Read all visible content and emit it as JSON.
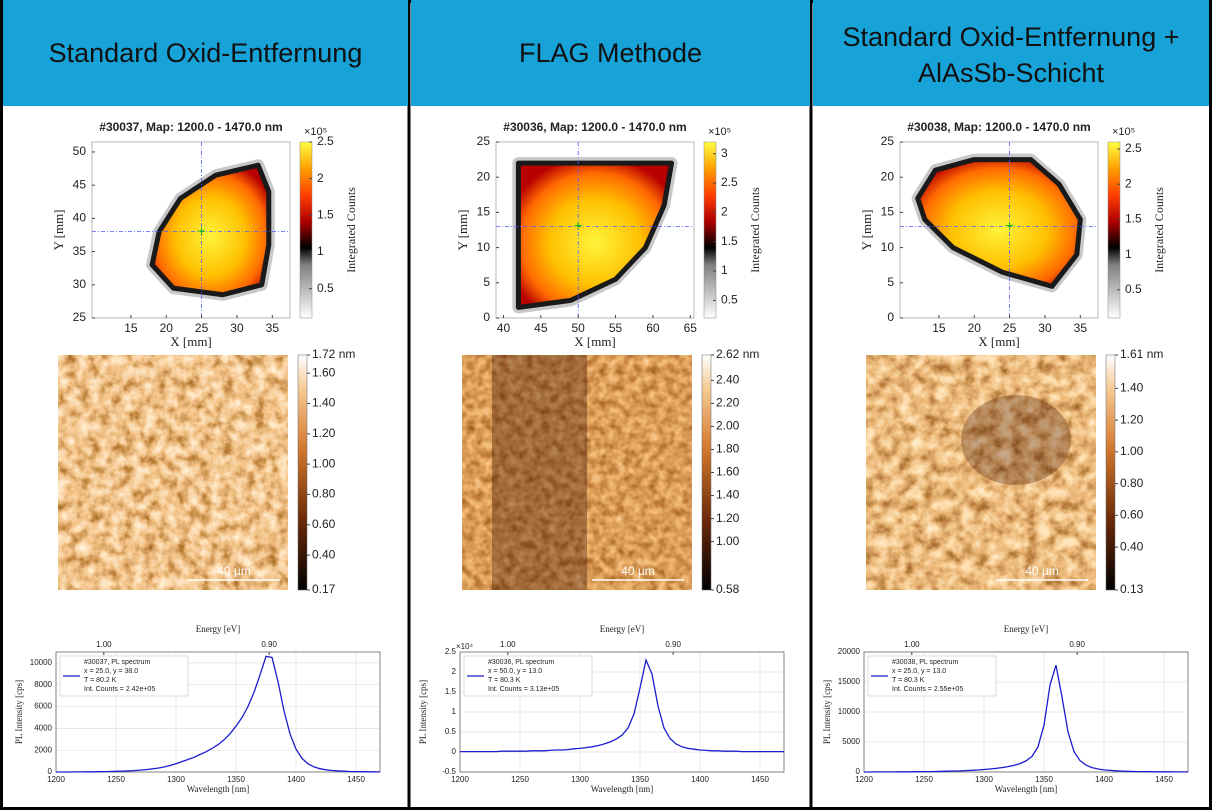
{
  "headers": [
    "Standard Oxid-Entfernung",
    "FLAG Methode",
    "Standard Oxid-Entfernung + AlAsSb-Schicht"
  ],
  "chart_data": [
    {
      "type": "heatmap",
      "title": "#30037, Map: 1200.0 - 1470.0 nm",
      "xlabel": "X [mm]",
      "ylabel": "Y [mm]",
      "xlim": [
        9.5,
        37.5
      ],
      "xticks": [
        15,
        20,
        25,
        30,
        35
      ],
      "ylim": [
        25,
        51.5
      ],
      "yticks": [
        25,
        30,
        35,
        40,
        45,
        50
      ],
      "crosshair": [
        25,
        38
      ],
      "colorbar_label": "Integrated Counts",
      "colorbar_multiplier": "×10⁵",
      "clim": [
        0.1,
        2.5
      ],
      "cticks": [
        0.5,
        1,
        1.5,
        2,
        2.5
      ]
    },
    {
      "type": "image",
      "clim": [
        0.17,
        1.72
      ],
      "cticks": [
        {
          "value": 1.72,
          "label": "1.72 nm"
        },
        {
          "value": 1.6,
          "label": "1.60"
        },
        {
          "value": 1.4,
          "label": "1.40"
        },
        {
          "value": 1.2,
          "label": "1.20"
        },
        {
          "value": 1,
          "label": "1.00"
        },
        {
          "value": 0.8,
          "label": "0.80"
        },
        {
          "value": 0.6,
          "label": "0.60"
        },
        {
          "value": 0.4,
          "label": "0.40"
        },
        0.17
      ],
      "scalebar_label": "40 µm"
    },
    {
      "type": "line",
      "xlabel": "Wavelength [nm]",
      "ylabel": "PL Intensity [cps]",
      "x2label": "Energy [eV]",
      "x": [
        1200,
        1205,
        1210,
        1215,
        1220,
        1225,
        1230,
        1235,
        1240,
        1245,
        1250,
        1255,
        1260,
        1265,
        1270,
        1275,
        1280,
        1285,
        1290,
        1295,
        1300,
        1305,
        1310,
        1315,
        1320,
        1325,
        1330,
        1335,
        1340,
        1345,
        1350,
        1355,
        1360,
        1365,
        1370,
        1375,
        1380,
        1385,
        1390,
        1395,
        1400,
        1405,
        1410,
        1415,
        1420,
        1425,
        1430,
        1435,
        1440,
        1445,
        1450,
        1455,
        1460,
        1465,
        1470
      ],
      "series": [
        {
          "name": "#30037, PL spectrum",
          "color": "#1c1cd0",
          "values": [
            0,
            0,
            0,
            10,
            10,
            20,
            20,
            30,
            40,
            50,
            60,
            80,
            100,
            130,
            170,
            220,
            280,
            360,
            460,
            600,
            760,
            950,
            1150,
            1350,
            1600,
            1850,
            2150,
            2500,
            2950,
            3500,
            4200,
            5000,
            6000,
            7300,
            8900,
            10600,
            10500,
            8300,
            5600,
            3500,
            2100,
            1250,
            750,
            470,
            300,
            200,
            140,
            100,
            70,
            50,
            40,
            30,
            20,
            20,
            10
          ]
        }
      ],
      "legend_lines": [
        "x = 25.0, y = 38.0",
        "T = 80.2 K",
        "Int. Counts = 2.42e+05"
      ],
      "xlim": [
        1200,
        1470
      ],
      "xticks": [
        1200,
        1250,
        1300,
        1350,
        1400,
        1450
      ],
      "ylim": [
        0,
        11000
      ],
      "yticks": [
        0,
        2000,
        4000,
        6000,
        8000,
        10000
      ],
      "x2ticks": [
        {
          "value": 1,
          "label": "1.00"
        },
        {
          "value": 0.9,
          "label": "0.90"
        }
      ],
      "grid": true
    },
    {
      "type": "heatmap",
      "title": "#30036, Map: 1200.0 - 1470.0 nm",
      "xlabel": "X [mm]",
      "ylabel": "Y [mm]",
      "xlim": [
        39,
        65.5
      ],
      "xticks": [
        40,
        45,
        50,
        55,
        60,
        65
      ],
      "ylim": [
        0,
        25
      ],
      "yticks": [
        0,
        5,
        10,
        15,
        20,
        25
      ],
      "crosshair": [
        50,
        13
      ],
      "colorbar_label": "Integrated Counts",
      "colorbar_multiplier": "×10⁵",
      "clim": [
        0.2,
        3.2
      ],
      "cticks": [
        0.5,
        1,
        1.5,
        2,
        2.5,
        3
      ]
    },
    {
      "type": "image",
      "clim": [
        0.58,
        2.62
      ],
      "cticks": [
        {
          "value": 2.62,
          "label": "2.62 nm"
        },
        {
          "value": 2.4,
          "label": "2.40"
        },
        {
          "value": 2.2,
          "label": "2.20"
        },
        {
          "value": 2,
          "label": "2.00"
        },
        {
          "value": 1.8,
          "label": "1.80"
        },
        {
          "value": 1.6,
          "label": "1.60"
        },
        {
          "value": 1.4,
          "label": "1.40"
        },
        {
          "value": 1.2,
          "label": "1.20"
        },
        {
          "value": 1,
          "label": "1.00"
        },
        0.58
      ],
      "scalebar_label": "40 µm"
    },
    {
      "type": "line",
      "xlabel": "Wavelength [nm]",
      "ylabel": "PL Intensity [cps]",
      "x2label": "Energy [eV]",
      "y_multiplier": "×10⁴",
      "x": [
        1200,
        1205,
        1210,
        1215,
        1220,
        1225,
        1230,
        1235,
        1240,
        1245,
        1250,
        1255,
        1260,
        1265,
        1270,
        1275,
        1280,
        1285,
        1290,
        1295,
        1300,
        1305,
        1310,
        1315,
        1320,
        1325,
        1330,
        1335,
        1340,
        1345,
        1350,
        1355,
        1360,
        1365,
        1370,
        1375,
        1380,
        1385,
        1390,
        1395,
        1400,
        1405,
        1410,
        1415,
        1420,
        1425,
        1430,
        1435,
        1440,
        1445,
        1450,
        1455,
        1460,
        1465,
        1470
      ],
      "series": [
        {
          "name": "#30036, PL spectrum",
          "color": "#1c1cd0",
          "values": [
            0.01,
            0.01,
            0.01,
            0.01,
            0.01,
            0.01,
            0.01,
            0.02,
            0.02,
            0.02,
            0.02,
            0.02,
            0.03,
            0.03,
            0.03,
            0.04,
            0.05,
            0.05,
            0.06,
            0.08,
            0.09,
            0.11,
            0.13,
            0.16,
            0.2,
            0.25,
            0.32,
            0.42,
            0.6,
            0.95,
            1.6,
            2.3,
            1.95,
            1.15,
            0.6,
            0.34,
            0.2,
            0.13,
            0.09,
            0.07,
            0.05,
            0.04,
            0.03,
            0.03,
            0.02,
            0.02,
            0.02,
            0.01,
            0.01,
            0.01,
            0.01,
            0.01,
            0.01,
            0.01,
            0.01
          ]
        }
      ],
      "legend_lines": [
        "x = 50.0, y = 13.0",
        "T = 80.3 K",
        "Int. Counts = 3.13e+05"
      ],
      "xlim": [
        1200,
        1470
      ],
      "xticks": [
        1200,
        1250,
        1300,
        1350,
        1400,
        1450
      ],
      "ylim": [
        -0.5,
        2.5
      ],
      "yticks": [
        -0.5,
        0,
        0.5,
        1,
        1.5,
        2,
        2.5
      ],
      "x2ticks": [
        {
          "value": 1,
          "label": "1.00"
        },
        {
          "value": 0.9,
          "label": "0.90"
        }
      ],
      "grid": true
    },
    {
      "type": "heatmap",
      "title": "#30038, Map: 1200.0 - 1470.0 nm",
      "xlabel": "X [mm]",
      "ylabel": "Y [mm]",
      "xlim": [
        9.5,
        37.5
      ],
      "xticks": [
        15,
        20,
        25,
        30,
        35
      ],
      "ylim": [
        0,
        25
      ],
      "yticks": [
        0,
        5,
        10,
        15,
        20,
        25
      ],
      "crosshair": [
        25,
        13
      ],
      "colorbar_label": "Integrated Counts",
      "colorbar_multiplier": "×10⁵",
      "clim": [
        0.1,
        2.6
      ],
      "cticks": [
        0.5,
        1,
        1.5,
        2,
        2.5
      ]
    },
    {
      "type": "image",
      "clim": [
        0.13,
        1.61
      ],
      "cticks": [
        {
          "value": 1.61,
          "label": "1.61 nm"
        },
        {
          "value": 1.4,
          "label": "1.40"
        },
        {
          "value": 1.2,
          "label": "1.20"
        },
        {
          "value": 1,
          "label": "1.00"
        },
        {
          "value": 0.8,
          "label": "0.80"
        },
        {
          "value": 0.6,
          "label": "0.60"
        },
        {
          "value": 0.4,
          "label": "0.40"
        },
        0.13
      ],
      "scalebar_label": "40 µm"
    },
    {
      "type": "line",
      "xlabel": "Wavelength [nm]",
      "ylabel": "PL Intensity [cps]",
      "x2label": "Energy [eV]",
      "x": [
        1200,
        1205,
        1210,
        1215,
        1220,
        1225,
        1230,
        1235,
        1240,
        1245,
        1250,
        1255,
        1260,
        1265,
        1270,
        1275,
        1280,
        1285,
        1290,
        1295,
        1300,
        1305,
        1310,
        1315,
        1320,
        1325,
        1330,
        1335,
        1340,
        1345,
        1350,
        1355,
        1360,
        1365,
        1370,
        1375,
        1380,
        1385,
        1390,
        1395,
        1400,
        1405,
        1410,
        1415,
        1420,
        1425,
        1430,
        1435,
        1440,
        1445,
        1450,
        1455,
        1460,
        1465,
        1470
      ],
      "series": [
        {
          "name": "#30038, PL spectrum",
          "color": "#1c1cd0",
          "values": [
            0,
            0,
            10,
            10,
            20,
            20,
            30,
            30,
            40,
            50,
            60,
            70,
            90,
            110,
            130,
            160,
            190,
            230,
            280,
            340,
            410,
            500,
            600,
            730,
            900,
            1100,
            1400,
            1850,
            2600,
            4200,
            7800,
            14500,
            17800,
            12500,
            6700,
            3400,
            1900,
            1150,
            740,
            500,
            350,
            260,
            200,
            150,
            120,
            90,
            70,
            60,
            50,
            40,
            30,
            30,
            20,
            20,
            10
          ]
        }
      ],
      "legend_lines": [
        "x = 25.0, y = 13.0",
        "T = 80.3 K",
        "Int. Counts = 2.55e+05"
      ],
      "xlim": [
        1200,
        1470
      ],
      "xticks": [
        1200,
        1250,
        1300,
        1350,
        1400,
        1450
      ],
      "ylim": [
        0,
        20000
      ],
      "yticks": [
        0,
        5000,
        10000,
        15000,
        20000
      ],
      "x2ticks": [
        {
          "value": 1,
          "label": "1.00"
        },
        {
          "value": 0.9,
          "label": "0.90"
        }
      ],
      "grid": true
    }
  ]
}
